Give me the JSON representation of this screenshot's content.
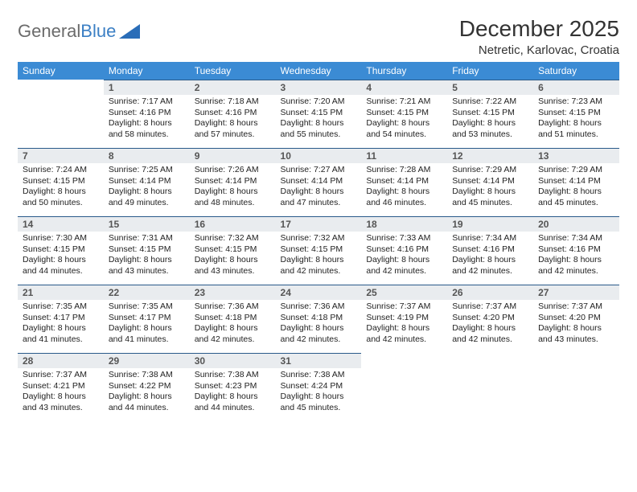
{
  "logo": {
    "text1": "General",
    "text2": "Blue"
  },
  "title": "December 2025",
  "location": "Netretic, Karlovac, Croatia",
  "colors": {
    "header_bg": "#3b8bd4",
    "daynum_bg": "#e9ecef",
    "daynum_border": "#2a5a8a",
    "logo_gray": "#6b6b6b",
    "logo_blue": "#3b7fc4"
  },
  "weekdays": [
    "Sunday",
    "Monday",
    "Tuesday",
    "Wednesday",
    "Thursday",
    "Friday",
    "Saturday"
  ],
  "weeks": [
    [
      null,
      {
        "n": "1",
        "sr": "7:17 AM",
        "ss": "4:16 PM",
        "dl": "8 hours and 58 minutes."
      },
      {
        "n": "2",
        "sr": "7:18 AM",
        "ss": "4:16 PM",
        "dl": "8 hours and 57 minutes."
      },
      {
        "n": "3",
        "sr": "7:20 AM",
        "ss": "4:15 PM",
        "dl": "8 hours and 55 minutes."
      },
      {
        "n": "4",
        "sr": "7:21 AM",
        "ss": "4:15 PM",
        "dl": "8 hours and 54 minutes."
      },
      {
        "n": "5",
        "sr": "7:22 AM",
        "ss": "4:15 PM",
        "dl": "8 hours and 53 minutes."
      },
      {
        "n": "6",
        "sr": "7:23 AM",
        "ss": "4:15 PM",
        "dl": "8 hours and 51 minutes."
      }
    ],
    [
      {
        "n": "7",
        "sr": "7:24 AM",
        "ss": "4:15 PM",
        "dl": "8 hours and 50 minutes."
      },
      {
        "n": "8",
        "sr": "7:25 AM",
        "ss": "4:14 PM",
        "dl": "8 hours and 49 minutes."
      },
      {
        "n": "9",
        "sr": "7:26 AM",
        "ss": "4:14 PM",
        "dl": "8 hours and 48 minutes."
      },
      {
        "n": "10",
        "sr": "7:27 AM",
        "ss": "4:14 PM",
        "dl": "8 hours and 47 minutes."
      },
      {
        "n": "11",
        "sr": "7:28 AM",
        "ss": "4:14 PM",
        "dl": "8 hours and 46 minutes."
      },
      {
        "n": "12",
        "sr": "7:29 AM",
        "ss": "4:14 PM",
        "dl": "8 hours and 45 minutes."
      },
      {
        "n": "13",
        "sr": "7:29 AM",
        "ss": "4:14 PM",
        "dl": "8 hours and 45 minutes."
      }
    ],
    [
      {
        "n": "14",
        "sr": "7:30 AM",
        "ss": "4:15 PM",
        "dl": "8 hours and 44 minutes."
      },
      {
        "n": "15",
        "sr": "7:31 AM",
        "ss": "4:15 PM",
        "dl": "8 hours and 43 minutes."
      },
      {
        "n": "16",
        "sr": "7:32 AM",
        "ss": "4:15 PM",
        "dl": "8 hours and 43 minutes."
      },
      {
        "n": "17",
        "sr": "7:32 AM",
        "ss": "4:15 PM",
        "dl": "8 hours and 42 minutes."
      },
      {
        "n": "18",
        "sr": "7:33 AM",
        "ss": "4:16 PM",
        "dl": "8 hours and 42 minutes."
      },
      {
        "n": "19",
        "sr": "7:34 AM",
        "ss": "4:16 PM",
        "dl": "8 hours and 42 minutes."
      },
      {
        "n": "20",
        "sr": "7:34 AM",
        "ss": "4:16 PM",
        "dl": "8 hours and 42 minutes."
      }
    ],
    [
      {
        "n": "21",
        "sr": "7:35 AM",
        "ss": "4:17 PM",
        "dl": "8 hours and 41 minutes."
      },
      {
        "n": "22",
        "sr": "7:35 AM",
        "ss": "4:17 PM",
        "dl": "8 hours and 41 minutes."
      },
      {
        "n": "23",
        "sr": "7:36 AM",
        "ss": "4:18 PM",
        "dl": "8 hours and 42 minutes."
      },
      {
        "n": "24",
        "sr": "7:36 AM",
        "ss": "4:18 PM",
        "dl": "8 hours and 42 minutes."
      },
      {
        "n": "25",
        "sr": "7:37 AM",
        "ss": "4:19 PM",
        "dl": "8 hours and 42 minutes."
      },
      {
        "n": "26",
        "sr": "7:37 AM",
        "ss": "4:20 PM",
        "dl": "8 hours and 42 minutes."
      },
      {
        "n": "27",
        "sr": "7:37 AM",
        "ss": "4:20 PM",
        "dl": "8 hours and 43 minutes."
      }
    ],
    [
      {
        "n": "28",
        "sr": "7:37 AM",
        "ss": "4:21 PM",
        "dl": "8 hours and 43 minutes."
      },
      {
        "n": "29",
        "sr": "7:38 AM",
        "ss": "4:22 PM",
        "dl": "8 hours and 44 minutes."
      },
      {
        "n": "30",
        "sr": "7:38 AM",
        "ss": "4:23 PM",
        "dl": "8 hours and 44 minutes."
      },
      {
        "n": "31",
        "sr": "7:38 AM",
        "ss": "4:24 PM",
        "dl": "8 hours and 45 minutes."
      },
      null,
      null,
      null
    ]
  ],
  "labels": {
    "sunrise": "Sunrise: ",
    "sunset": "Sunset: ",
    "daylight": "Daylight: "
  }
}
